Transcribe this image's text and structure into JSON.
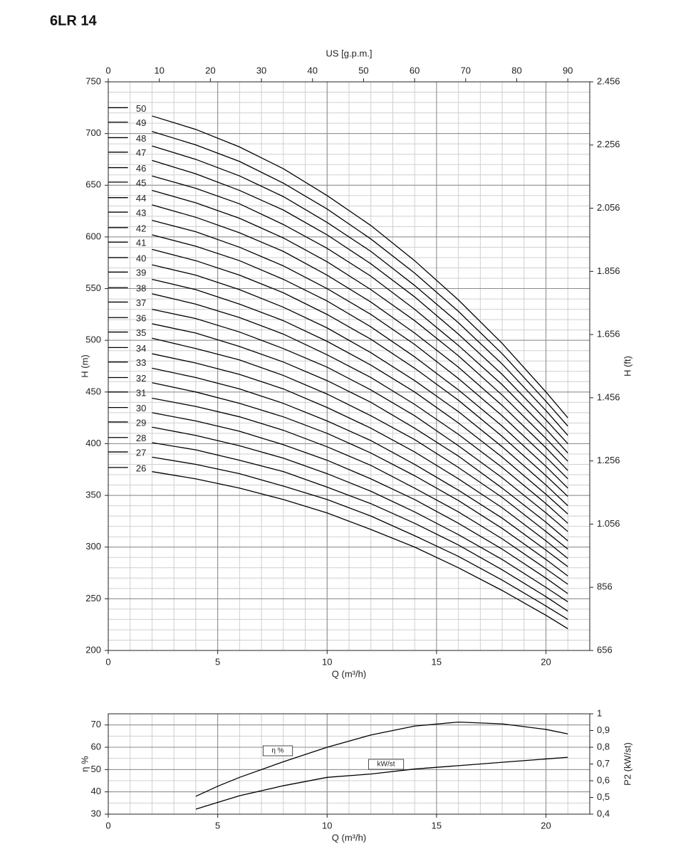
{
  "chart_data": [
    {
      "type": "line",
      "title": "6LR 14",
      "x_label": "Q (m³/h)",
      "x2_label": "US [g.p.m.]",
      "y_label": "H (m)",
      "y2_label": "H (ft)",
      "x": [
        0,
        0.9,
        1.5,
        2,
        4,
        6,
        8,
        10,
        12,
        14,
        16,
        18,
        20,
        21
      ],
      "xlim": [
        0,
        22
      ],
      "xticks": [
        0,
        5,
        10,
        15,
        20
      ],
      "x2lim": [
        0,
        94.3
      ],
      "x2ticks": [
        0,
        10,
        20,
        30,
        40,
        50,
        60,
        70,
        80,
        90
      ],
      "ylim": [
        200,
        750
      ],
      "yticks": [
        200,
        250,
        300,
        350,
        400,
        450,
        500,
        550,
        600,
        650,
        700,
        750
      ],
      "y2lim": [
        656,
        2456
      ],
      "y2ticks": [
        656,
        856,
        {
          "value": 1056,
          "label": "1.056"
        },
        {
          "value": 1256,
          "label": "1.256"
        },
        {
          "value": 1456,
          "label": "1.456"
        },
        {
          "value": 1656,
          "label": "1.656"
        },
        {
          "value": 1856,
          "label": "1.856"
        },
        {
          "value": 2056,
          "label": "2.056"
        },
        {
          "value": 2256,
          "label": "2.256"
        },
        {
          "value": 2456,
          "label": "2.456"
        }
      ],
      "grid": true,
      "color": "#000000",
      "series": [
        {
          "name": "26",
          "values": [
            377,
            377,
            null,
            373,
            366,
            357,
            346,
            333,
            317,
            300,
            280,
            258,
            234,
            221
          ]
        },
        {
          "name": "27",
          "values": [
            392,
            392,
            null,
            387,
            380,
            371,
            359,
            346,
            330,
            311,
            291,
            268,
            243,
            230
          ]
        },
        {
          "name": "28",
          "values": [
            406,
            406,
            null,
            401,
            394,
            384,
            373,
            358,
            342,
            323,
            302,
            278,
            252,
            238
          ]
        },
        {
          "name": "29",
          "values": [
            421,
            421,
            null,
            416,
            408,
            398,
            386,
            371,
            354,
            334,
            312,
            288,
            261,
            247
          ]
        },
        {
          "name": "30",
          "values": [
            435,
            435,
            null,
            430,
            422,
            412,
            399,
            384,
            366,
            346,
            323,
            298,
            270,
            255
          ]
        },
        {
          "name": "31",
          "values": [
            450,
            450,
            null,
            444,
            436,
            426,
            413,
            397,
            379,
            357,
            334,
            308,
            279,
            264
          ]
        },
        {
          "name": "32",
          "values": [
            464,
            464,
            null,
            459,
            450,
            439,
            426,
            410,
            391,
            369,
            345,
            318,
            288,
            272
          ]
        },
        {
          "name": "33",
          "values": [
            479,
            479,
            null,
            473,
            464,
            453,
            439,
            422,
            403,
            380,
            355,
            328,
            297,
            281
          ]
        },
        {
          "name": "34",
          "values": [
            493,
            493,
            null,
            487,
            478,
            467,
            453,
            435,
            415,
            392,
            366,
            338,
            306,
            289
          ]
        },
        {
          "name": "35",
          "values": [
            508,
            508,
            null,
            502,
            492,
            481,
            466,
            448,
            427,
            404,
            377,
            348,
            315,
            298
          ]
        },
        {
          "name": "36",
          "values": [
            522,
            522,
            null,
            516,
            507,
            494,
            479,
            461,
            440,
            415,
            388,
            357,
            324,
            306
          ]
        },
        {
          "name": "37",
          "values": [
            537,
            537,
            null,
            530,
            521,
            508,
            492,
            474,
            452,
            427,
            398,
            367,
            333,
            315
          ]
        },
        {
          "name": "38",
          "values": [
            551,
            551,
            null,
            545,
            535,
            522,
            506,
            486,
            464,
            438,
            409,
            377,
            342,
            323
          ]
        },
        {
          "name": "39",
          "values": [
            566,
            566,
            null,
            559,
            549,
            535,
            519,
            499,
            476,
            450,
            420,
            387,
            351,
            332
          ]
        },
        {
          "name": "40",
          "values": [
            580,
            580,
            null,
            573,
            563,
            549,
            532,
            512,
            488,
            461,
            431,
            397,
            360,
            340
          ]
        },
        {
          "name": "41",
          "values": [
            595,
            595,
            null,
            588,
            577,
            563,
            546,
            525,
            501,
            473,
            442,
            407,
            369,
            349
          ]
        },
        {
          "name": "42",
          "values": [
            609,
            609,
            null,
            602,
            591,
            577,
            559,
            538,
            513,
            484,
            452,
            417,
            378,
            357
          ]
        },
        {
          "name": "43",
          "values": [
            624,
            624,
            null,
            616,
            605,
            590,
            572,
            550,
            525,
            496,
            463,
            427,
            387,
            366
          ]
        },
        {
          "name": "44",
          "values": [
            638,
            638,
            null,
            631,
            619,
            604,
            586,
            563,
            537,
            507,
            474,
            437,
            396,
            374
          ]
        },
        {
          "name": "45",
          "values": [
            653,
            653,
            null,
            645,
            633,
            618,
            599,
            576,
            549,
            519,
            485,
            447,
            405,
            383
          ]
        },
        {
          "name": "46",
          "values": [
            667,
            667,
            null,
            659,
            647,
            632,
            612,
            589,
            562,
            530,
            495,
            457,
            414,
            391
          ]
        },
        {
          "name": "47",
          "values": [
            682,
            682,
            null,
            674,
            661,
            645,
            626,
            602,
            574,
            542,
            506,
            467,
            423,
            400
          ]
        },
        {
          "name": "48",
          "values": [
            696,
            696,
            null,
            688,
            675,
            659,
            639,
            614,
            586,
            553,
            517,
            477,
            432,
            408
          ]
        },
        {
          "name": "49",
          "values": [
            711,
            711,
            null,
            702,
            689,
            673,
            652,
            627,
            598,
            565,
            528,
            487,
            441,
            417
          ]
        },
        {
          "name": "50",
          "values": [
            725,
            725,
            null,
            717,
            704,
            687,
            666,
            640,
            611,
            577,
            539,
            497,
            450,
            425
          ]
        }
      ]
    },
    {
      "type": "line",
      "x_label": "Q (m³/h)",
      "y_label": "η %",
      "y2_label": "P2 (kW/st)",
      "x": [
        4,
        5,
        6,
        8,
        10,
        12,
        14,
        16,
        18,
        20,
        21
      ],
      "xlim": [
        0,
        22
      ],
      "xticks": [
        0,
        5,
        10,
        15,
        20
      ],
      "ylim": [
        30,
        75
      ],
      "yticks": [
        30,
        40,
        50,
        60,
        70
      ],
      "y2lim": [
        0.4,
        1
      ],
      "y2ticks": [
        {
          "value": 0.4,
          "label": "0,4"
        },
        {
          "value": 0.5,
          "label": "0,5"
        },
        {
          "value": 0.6,
          "label": "0,6"
        },
        {
          "value": 0.7,
          "label": "0,7"
        },
        {
          "value": 0.8,
          "label": "0,8"
        },
        {
          "value": 0.9,
          "label": "0,9"
        },
        1
      ],
      "grid": true,
      "color": "#000000",
      "series": [
        {
          "name": "η %",
          "values": [
            38,
            42.5,
            46.5,
            53.5,
            60,
            65.5,
            69.5,
            71.3,
            70.5,
            68,
            66
          ]
        },
        {
          "name": "kW/st",
          "axis": "y2",
          "values": [
            0.43,
            0.47,
            0.51,
            0.57,
            0.62,
            0.64,
            0.67,
            0.69,
            0.71,
            0.73,
            0.74
          ]
        }
      ]
    }
  ]
}
